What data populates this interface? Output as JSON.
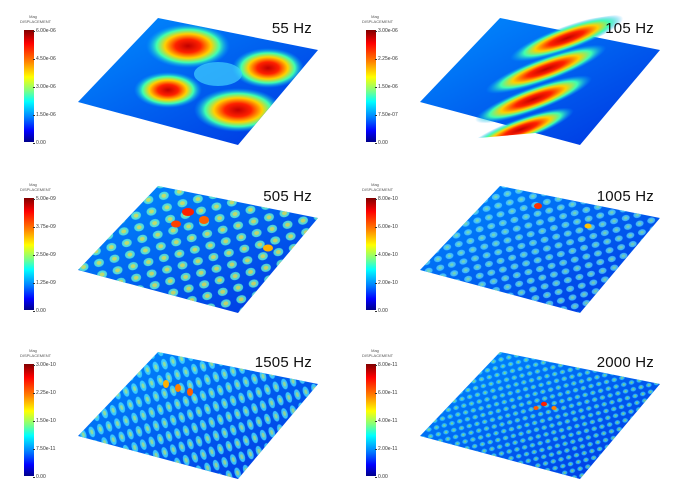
{
  "legend": {
    "title1": "Mag",
    "title2": "DISPLACEMENT"
  },
  "panels": [
    {
      "freq": "55 Hz",
      "ticks": [
        "6.00e-06",
        "4.50e-06",
        "3.00e-06",
        "1.50e-06",
        "0.00"
      ]
    },
    {
      "freq": "105 Hz",
      "ticks": [
        "3.00e-06",
        "2.25e-06",
        "1.50e-06",
        "7.50e-07",
        "0.00"
      ]
    },
    {
      "freq": "505 Hz",
      "ticks": [
        "5.00e-09",
        "3.75e-09",
        "2.50e-09",
        "1.25e-09",
        "0.00"
      ]
    },
    {
      "freq": "1005 Hz",
      "ticks": [
        "8.00e-10",
        "6.00e-10",
        "4.00e-10",
        "2.00e-10",
        "0.00"
      ]
    },
    {
      "freq": "1505 Hz",
      "ticks": [
        "3.00e-10",
        "2.25e-10",
        "1.50e-10",
        "7.50e-11",
        "0.00"
      ]
    },
    {
      "freq": "2000 Hz",
      "ticks": [
        "8.00e-11",
        "6.00e-11",
        "4.00e-11",
        "2.00e-11",
        "0.00"
      ]
    }
  ]
}
